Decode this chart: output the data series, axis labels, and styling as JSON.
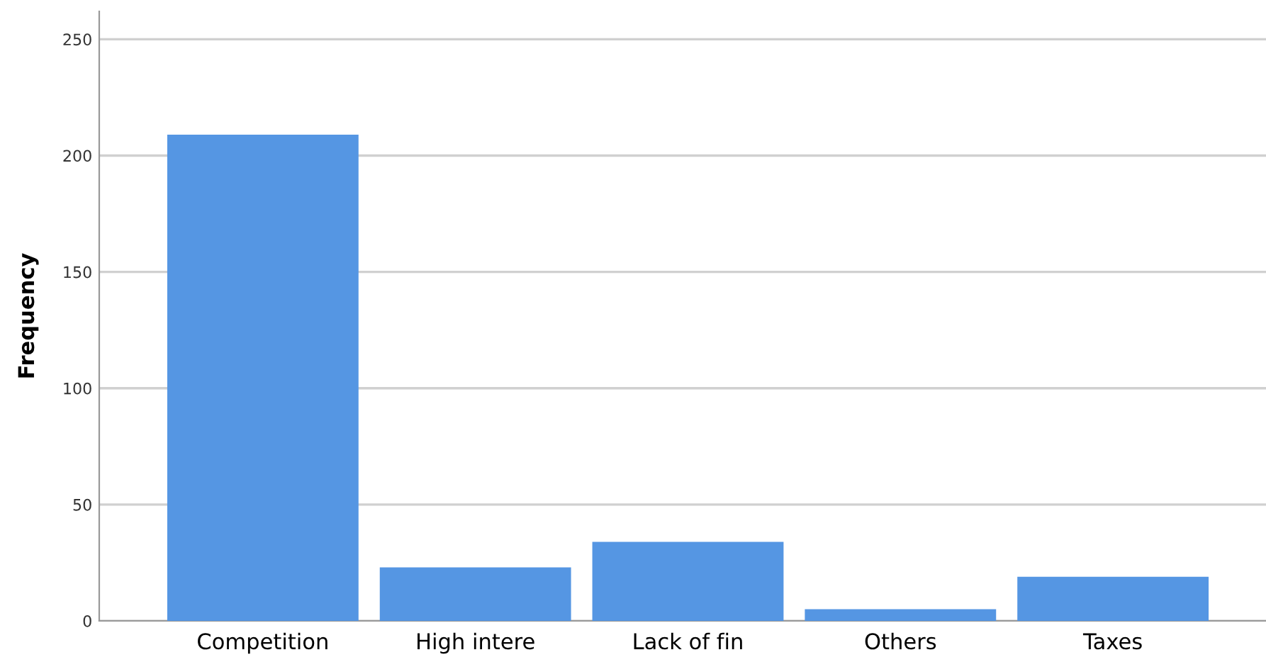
{
  "chart_data": {
    "type": "bar",
    "ylabel": "Frequency",
    "categories": [
      "Competition",
      "High intere",
      "Lack of fin",
      "Others",
      "Taxes"
    ],
    "values": [
      209,
      23,
      34,
      5,
      19
    ],
    "color": "#5596e3",
    "ylim": [
      0,
      262
    ],
    "yticks": [
      0,
      50,
      100,
      150,
      200,
      250
    ],
    "grid": "y"
  }
}
